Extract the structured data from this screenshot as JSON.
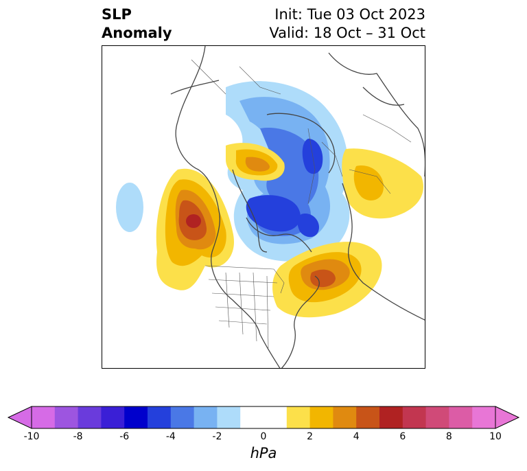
{
  "title": {
    "left_line1": "SLP",
    "left_line2": "Anomaly",
    "right_line1": "Init: Tue 03 Oct 2023",
    "right_line2": "Valid: 18 Oct – 31 Oct"
  },
  "colorbar": {
    "unit": "hPa",
    "ticks": [
      "-10",
      "-8",
      "-6",
      "-4",
      "-2",
      "0",
      "2",
      "4",
      "6",
      "8",
      "10"
    ],
    "colors": [
      "#d66be6",
      "#9d55e0",
      "#6a3bdc",
      "#3a1fd6",
      "#0000cc",
      "#2440dc",
      "#4a78e6",
      "#78b2f2",
      "#aedcfa",
      "#ffffff",
      "#ffffff",
      "#fce04a",
      "#f2b600",
      "#e08a10",
      "#c85418",
      "#b02222",
      "#c23650",
      "#d04a78",
      "#dc5ca6",
      "#e876d6"
    ]
  },
  "map": {
    "projection": "polar-stereographic",
    "region": "Northern Hemisphere",
    "features": [
      "coastlines",
      "country-borders",
      "us-state-borders"
    ]
  }
}
